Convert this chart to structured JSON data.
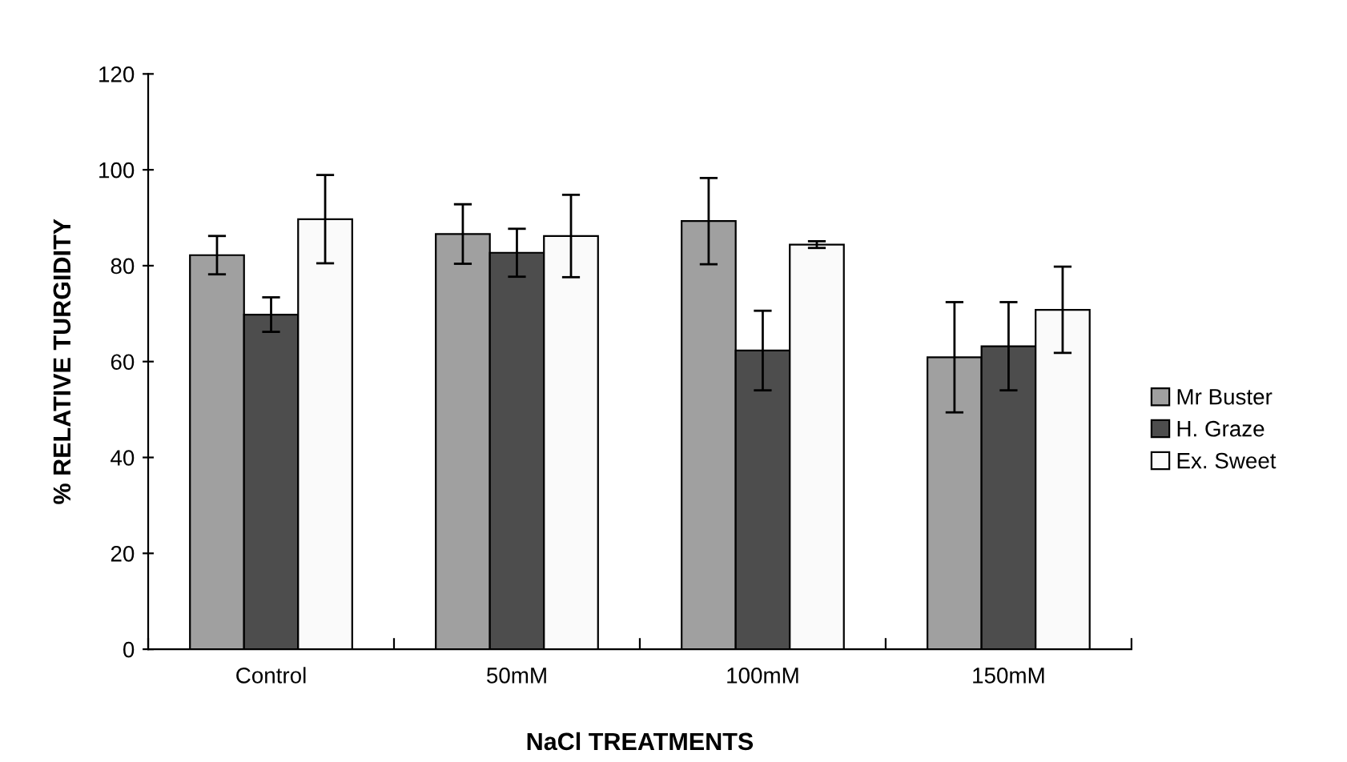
{
  "chart_data": {
    "type": "bar",
    "xlabel": "NaCl TREATMENTS",
    "ylabel": "% RELATIVE TURGIDITY",
    "categories": [
      "Control",
      "50mM",
      "100mM",
      "150mM"
    ],
    "series": [
      {
        "name": "Mr Buster",
        "color": "#a0a0a0",
        "values": [
          82.2,
          86.6,
          89.3,
          60.9
        ],
        "errors": [
          4,
          6.2,
          9,
          11.5
        ]
      },
      {
        "name": "H. Graze",
        "color": "#4d4d4d",
        "values": [
          69.8,
          82.7,
          62.3,
          63.2
        ],
        "errors": [
          3.6,
          5,
          8.3,
          9.2
        ]
      },
      {
        "name": "Ex. Sweet",
        "color": "#fafafa",
        "values": [
          89.7,
          86.2,
          84.4,
          70.8
        ],
        "errors": [
          9.2,
          8.6,
          0.7,
          9
        ]
      }
    ],
    "ylim": [
      0,
      120
    ],
    "yticks": [
      0,
      20,
      40,
      60,
      80,
      100,
      120
    ],
    "grid": false,
    "legend": "right"
  }
}
